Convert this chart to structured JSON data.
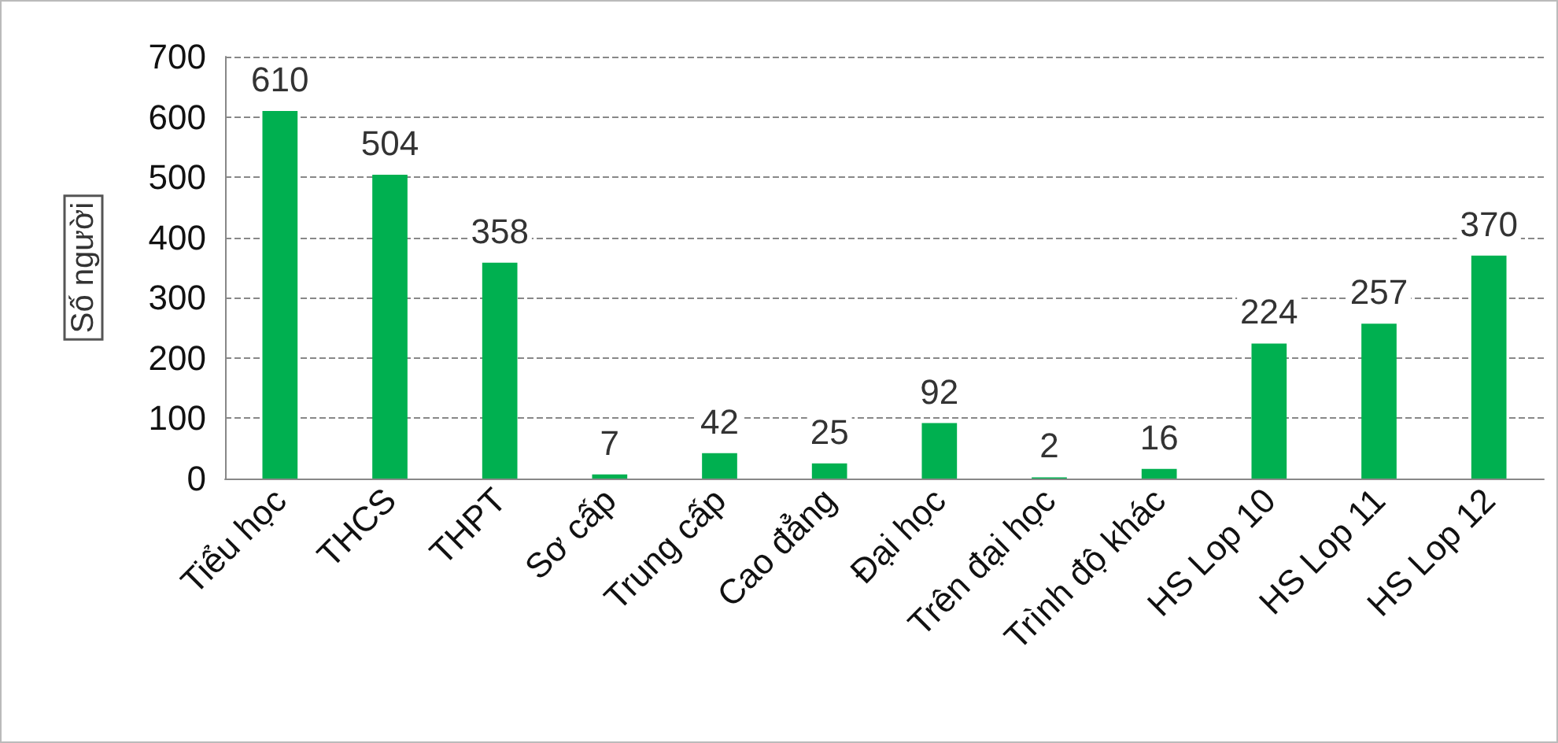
{
  "chart_data": {
    "type": "bar",
    "ylabel": "Số người",
    "categories": [
      "Tiểu học",
      "THCS",
      "THPT",
      "Sơ cấp",
      "Trung cấp",
      "Cao đẳng",
      "Đại học",
      "Trên đại học",
      "Trình độ khác",
      "HS Lop 10",
      "HS Lop 11",
      "HS Lop 12"
    ],
    "values": [
      610,
      504,
      358,
      7,
      42,
      25,
      92,
      2,
      16,
      224,
      257,
      370
    ],
    "color": "#00b050",
    "ylim": [
      0,
      700
    ],
    "yticks": [
      0,
      100,
      200,
      300,
      400,
      500,
      600,
      700
    ],
    "grid": "y",
    "data_labels": true
  }
}
